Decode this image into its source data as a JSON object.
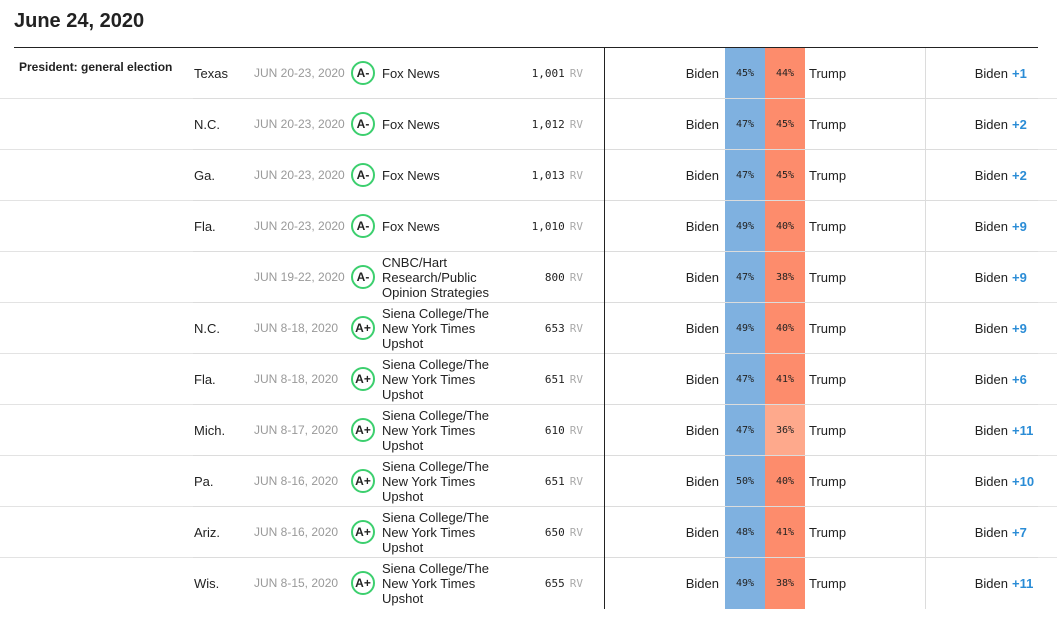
{
  "page": {
    "date": "June 24, 2020",
    "section": "President: general election"
  },
  "colors": {
    "biden_blue": "#7fb1e0",
    "trump_orange_strong": "#fd8c6c",
    "trump_orange_light": "#fea98c",
    "grade_green": "#3ccf6e",
    "margin_blue": "#2a8cd6"
  },
  "polls": [
    {
      "state": "Texas",
      "dates": "JUN 20-23, 2020",
      "grade": "A-",
      "pollster": "Fox News",
      "sample": "1,001",
      "population": "RV",
      "cand_a": "Biden",
      "pct_a": "45%",
      "pct_b": "44%",
      "cand_b": "Trump",
      "leader": "Biden",
      "margin": "+1",
      "biden_pct": 45,
      "trump_pct": 44
    },
    {
      "state": "N.C.",
      "dates": "JUN 20-23, 2020",
      "grade": "A-",
      "pollster": "Fox News",
      "sample": "1,012",
      "population": "RV",
      "cand_a": "Biden",
      "pct_a": "47%",
      "pct_b": "45%",
      "cand_b": "Trump",
      "leader": "Biden",
      "margin": "+2",
      "biden_pct": 47,
      "trump_pct": 45
    },
    {
      "state": "Ga.",
      "dates": "JUN 20-23, 2020",
      "grade": "A-",
      "pollster": "Fox News",
      "sample": "1,013",
      "population": "RV",
      "cand_a": "Biden",
      "pct_a": "47%",
      "pct_b": "45%",
      "cand_b": "Trump",
      "leader": "Biden",
      "margin": "+2",
      "biden_pct": 47,
      "trump_pct": 45
    },
    {
      "state": "Fla.",
      "dates": "JUN 20-23, 2020",
      "grade": "A-",
      "pollster": "Fox News",
      "sample": "1,010",
      "population": "RV",
      "cand_a": "Biden",
      "pct_a": "49%",
      "pct_b": "40%",
      "cand_b": "Trump",
      "leader": "Biden",
      "margin": "+9",
      "biden_pct": 49,
      "trump_pct": 40
    },
    {
      "state": "",
      "dates": "JUN 19-22, 2020",
      "grade": "A-",
      "pollster": "CNBC/Hart Research/Public Opinion Strategies",
      "sample": "800",
      "population": "RV",
      "cand_a": "Biden",
      "pct_a": "47%",
      "pct_b": "38%",
      "cand_b": "Trump",
      "leader": "Biden",
      "margin": "+9",
      "biden_pct": 47,
      "trump_pct": 38
    },
    {
      "state": "N.C.",
      "dates": "JUN 8-18, 2020",
      "grade": "A+",
      "pollster": "Siena College/The New York Times Upshot",
      "sample": "653",
      "population": "RV",
      "cand_a": "Biden",
      "pct_a": "49%",
      "pct_b": "40%",
      "cand_b": "Trump",
      "leader": "Biden",
      "margin": "+9",
      "biden_pct": 49,
      "trump_pct": 40
    },
    {
      "state": "Fla.",
      "dates": "JUN 8-18, 2020",
      "grade": "A+",
      "pollster": "Siena College/The New York Times Upshot",
      "sample": "651",
      "population": "RV",
      "cand_a": "Biden",
      "pct_a": "47%",
      "pct_b": "41%",
      "cand_b": "Trump",
      "leader": "Biden",
      "margin": "+6",
      "biden_pct": 47,
      "trump_pct": 41
    },
    {
      "state": "Mich.",
      "dates": "JUN 8-17, 2020",
      "grade": "A+",
      "pollster": "Siena College/The New York Times Upshot",
      "sample": "610",
      "population": "RV",
      "cand_a": "Biden",
      "pct_a": "47%",
      "pct_b": "36%",
      "cand_b": "Trump",
      "leader": "Biden",
      "margin": "+11",
      "biden_pct": 47,
      "trump_pct": 36
    },
    {
      "state": "Pa.",
      "dates": "JUN 8-16, 2020",
      "grade": "A+",
      "pollster": "Siena College/The New York Times Upshot",
      "sample": "651",
      "population": "RV",
      "cand_a": "Biden",
      "pct_a": "50%",
      "pct_b": "40%",
      "cand_b": "Trump",
      "leader": "Biden",
      "margin": "+10",
      "biden_pct": 50,
      "trump_pct": 40
    },
    {
      "state": "Ariz.",
      "dates": "JUN 8-16, 2020",
      "grade": "A+",
      "pollster": "Siena College/The New York Times Upshot",
      "sample": "650",
      "population": "RV",
      "cand_a": "Biden",
      "pct_a": "48%",
      "pct_b": "41%",
      "cand_b": "Trump",
      "leader": "Biden",
      "margin": "+7",
      "biden_pct": 48,
      "trump_pct": 41
    },
    {
      "state": "Wis.",
      "dates": "JUN 8-15, 2020",
      "grade": "A+",
      "pollster": "Siena College/The New York Times Upshot",
      "sample": "655",
      "population": "RV",
      "cand_a": "Biden",
      "pct_a": "49%",
      "pct_b": "38%",
      "cand_b": "Trump",
      "leader": "Biden",
      "margin": "+11",
      "biden_pct": 49,
      "trump_pct": 38
    }
  ]
}
